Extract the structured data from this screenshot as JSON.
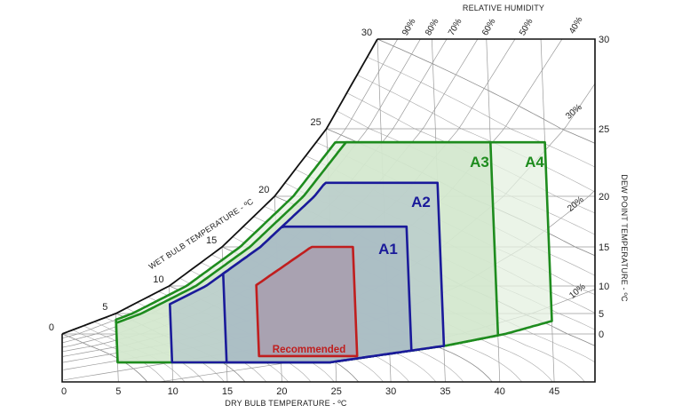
{
  "chart_data": {
    "type": "area",
    "title": "",
    "xlabel": "DRY BULB TEMPERATURE - ºC",
    "ylabel_right": "DEW POINT TEMPERATURE - ºC",
    "wet_bulb_label": "WET BULB TEMPERATURE - ºC",
    "rh_label": "RELATIVE HUMIDITY",
    "x_ticks": [
      "0",
      "5",
      "10",
      "15",
      "20",
      "25",
      "30",
      "35",
      "40",
      "45"
    ],
    "x_tick_values": [
      0,
      5,
      10,
      15,
      20,
      25,
      30,
      35,
      40,
      45
    ],
    "y_right_ticks": [
      "0",
      "5",
      "10",
      "15",
      "20",
      "25",
      "30"
    ],
    "y_right_tick_values": [
      0,
      5,
      10,
      15,
      20,
      25,
      30
    ],
    "wet_bulb_ticks": [
      "0",
      "5",
      "10",
      "15",
      "20",
      "25",
      "30"
    ],
    "wet_bulb_tick_values": [
      0,
      5,
      10,
      15,
      20,
      25,
      30
    ],
    "rh_curves_pct": [
      10,
      20,
      30,
      40,
      50,
      60,
      70,
      80,
      90
    ],
    "rh_tick_labels": [
      "10%",
      "20%",
      "30%",
      "40%",
      "50%",
      "60%",
      "70%",
      "80%",
      "90%"
    ],
    "xlim": [
      0,
      48
    ],
    "grid": true,
    "envelopes": [
      {
        "name": "A4",
        "label": "A4",
        "dry_bulb_c": [
          5,
          45
        ],
        "dew_point_min_c": -12,
        "dew_point_max_c": 24,
        "rh_min_pct": 8,
        "rh_max_pct": 90,
        "stroke": "#1e8c1e",
        "fill": "#e4f0e0"
      },
      {
        "name": "A3",
        "label": "A3",
        "dry_bulb_c": [
          5,
          40
        ],
        "dew_point_min_c": -12,
        "dew_point_max_c": 24,
        "rh_min_pct": 8,
        "rh_max_pct": 85,
        "stroke": "#1e8c1e",
        "fill": "#cfe5c9"
      },
      {
        "name": "A2",
        "label": "A2",
        "dry_bulb_c": [
          10,
          35
        ],
        "dew_point_min_c": -12,
        "dew_point_max_c": 21,
        "rh_min_pct": 8,
        "rh_max_pct": 80,
        "stroke": "#1a1a9a",
        "fill": "#b5c8c9"
      },
      {
        "name": "A1",
        "label": "A1",
        "dry_bulb_c": [
          15,
          32
        ],
        "dew_point_min_c": -12,
        "dew_point_max_c": 17,
        "rh_min_pct": 8,
        "rh_max_pct": 80,
        "stroke": "#1a1a9a",
        "fill": "#a6b8c3"
      },
      {
        "name": "Recommended",
        "label": "Recommended",
        "dry_bulb_c": [
          18,
          27
        ],
        "dew_point_min_c": -9,
        "dew_point_max_c": 15,
        "rh_min_pct": 8,
        "rh_max_pct": 60,
        "stroke": "#c01e1e",
        "fill": "#a898aa"
      }
    ]
  }
}
